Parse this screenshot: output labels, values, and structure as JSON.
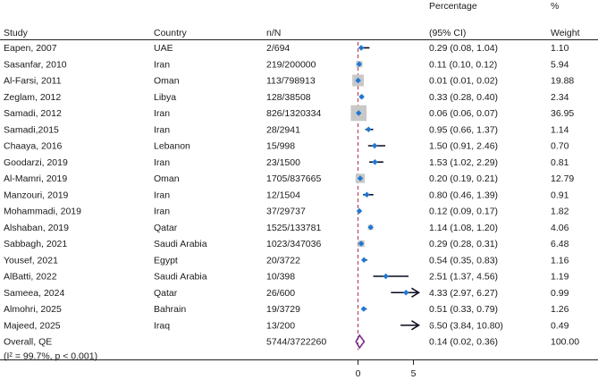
{
  "chart_data": {
    "type": "forest",
    "headers": {
      "study": "Study",
      "country": "Country",
      "nN": "n/N",
      "percentage_line1": "Percentage",
      "percentage_line2": "(95% CI)",
      "weight_line1": "%",
      "weight_line2": "Weight"
    },
    "rows": [
      {
        "study": "Eapen, 2007",
        "country": "UAE",
        "nN": "2/694",
        "est": 0.29,
        "lo": 0.08,
        "hi": 1.04,
        "ci_text": "0.29 (0.08, 1.04)",
        "weight": 1.1,
        "weight_text": "1.10"
      },
      {
        "study": "Sasanfar, 2010",
        "country": "Iran",
        "nN": "219/200000",
        "est": 0.11,
        "lo": 0.1,
        "hi": 0.12,
        "ci_text": "0.11 (0.10, 0.12)",
        "weight": 5.94,
        "weight_text": "5.94"
      },
      {
        "study": "Al-Farsi, 2011",
        "country": "Oman",
        "nN": "113/798913",
        "est": 0.01,
        "lo": 0.01,
        "hi": 0.02,
        "ci_text": "0.01 (0.01, 0.02)",
        "weight": 19.88,
        "weight_text": "19.88"
      },
      {
        "study": "Zeglam, 2012",
        "country": "Libya",
        "nN": "128/38508",
        "est": 0.33,
        "lo": 0.28,
        "hi": 0.4,
        "ci_text": "0.33 (0.28, 0.40)",
        "weight": 2.34,
        "weight_text": "2.34"
      },
      {
        "study": "Samadi, 2012",
        "country": "Iran",
        "nN": "826/1320334",
        "est": 0.06,
        "lo": 0.06,
        "hi": 0.07,
        "ci_text": "0.06 (0.06, 0.07)",
        "weight": 36.95,
        "weight_text": "36.95"
      },
      {
        "study": "Samadi,2015",
        "country": "Iran",
        "nN": "28/2941",
        "est": 0.95,
        "lo": 0.66,
        "hi": 1.37,
        "ci_text": "0.95 (0.66, 1.37)",
        "weight": 1.14,
        "weight_text": "1.14"
      },
      {
        "study": "Chaaya, 2016",
        "country": "Lebanon",
        "nN": "15/998",
        "est": 1.5,
        "lo": 0.91,
        "hi": 2.46,
        "ci_text": "1.50 (0.91, 2.46)",
        "weight": 0.7,
        "weight_text": "0.70"
      },
      {
        "study": "Goodarzi, 2019",
        "country": "Iran",
        "nN": "23/1500",
        "est": 1.53,
        "lo": 1.02,
        "hi": 2.29,
        "ci_text": "1.53 (1.02, 2.29)",
        "weight": 0.81,
        "weight_text": "0.81"
      },
      {
        "study": "Al-Mamri, 2019",
        "country": "Oman",
        "nN": "1705/837665",
        "est": 0.2,
        "lo": 0.19,
        "hi": 0.21,
        "ci_text": "0.20 (0.19, 0.21)",
        "weight": 12.79,
        "weight_text": "12.79"
      },
      {
        "study": "Manzouri, 2019",
        "country": "Iran",
        "nN": "12/1504",
        "est": 0.8,
        "lo": 0.46,
        "hi": 1.39,
        "ci_text": "0.80 (0.46, 1.39)",
        "weight": 0.91,
        "weight_text": "0.91"
      },
      {
        "study": "Mohammadi, 2019",
        "country": "Iran",
        "nN": "37/29737",
        "est": 0.12,
        "lo": 0.09,
        "hi": 0.17,
        "ci_text": "0.12 (0.09, 0.17)",
        "weight": 1.82,
        "weight_text": "1.82"
      },
      {
        "study": "Alshaban, 2019",
        "country": "Qatar",
        "nN": "1525/133781",
        "est": 1.14,
        "lo": 1.08,
        "hi": 1.2,
        "ci_text": "1.14 (1.08, 1.20)",
        "weight": 4.06,
        "weight_text": "4.06"
      },
      {
        "study": "Sabbagh, 2021",
        "country": "Saudi Arabia",
        "nN": "1023/347036",
        "est": 0.29,
        "lo": 0.28,
        "hi": 0.31,
        "ci_text": "0.29 (0.28, 0.31)",
        "weight": 6.48,
        "weight_text": "6.48"
      },
      {
        "study": "Yousef, 2021",
        "country": "Egypt",
        "nN": "20/3722",
        "est": 0.54,
        "lo": 0.35,
        "hi": 0.83,
        "ci_text": "0.54 (0.35, 0.83)",
        "weight": 1.16,
        "weight_text": "1.16"
      },
      {
        "study": "AlBatti, 2022",
        "country": "Saudi Arabia",
        "nN": "10/398",
        "est": 2.51,
        "lo": 1.37,
        "hi": 4.56,
        "ci_text": "2.51 (1.37, 4.56)",
        "weight": 1.19,
        "weight_text": "1.19"
      },
      {
        "study": "Sameea, 2024",
        "country": "Qatar",
        "nN": "26/600",
        "est": 4.33,
        "lo": 2.97,
        "hi": 6.27,
        "ci_text": "4.33 (2.97, 6.27)",
        "weight": 0.99,
        "weight_text": "0.99"
      },
      {
        "study": "Almohri, 2025",
        "country": "Bahrain",
        "nN": "19/3729",
        "est": 0.51,
        "lo": 0.33,
        "hi": 0.79,
        "ci_text": "0.51 (0.33, 0.79)",
        "weight": 1.26,
        "weight_text": "1.26"
      },
      {
        "study": "Majeed, 2025",
        "country": "Iraq",
        "nN": "13/200",
        "est": 6.5,
        "lo": 3.84,
        "hi": 10.8,
        "ci_text": "6.50 (3.84, 10.80)",
        "weight": 0.49,
        "weight_text": "0.49"
      }
    ],
    "overall": {
      "study": "Overall, QE",
      "nN": "5744/3722260",
      "est": 0.14,
      "lo": 0.02,
      "hi": 0.36,
      "ci_text": "0.14 (0.02, 0.36)",
      "weight_text": "100.00",
      "heterogeneity": "(I² = 99.7%, p < 0.001)"
    },
    "x_axis": {
      "ticks": [
        0,
        5
      ],
      "tick_labels": [
        "0",
        "5"
      ],
      "visible_range": [
        -0.5,
        6.5
      ]
    },
    "colors": {
      "point": "#1f77d4",
      "weight_box": "#c8c8c8",
      "ci_line": "#0a0a1e",
      "ref_line": "#b0304a",
      "overall_diamond": "#7b2d8b",
      "rule": "#222222"
    }
  }
}
